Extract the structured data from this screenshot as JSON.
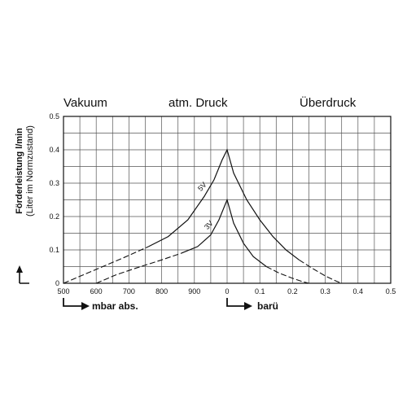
{
  "regions": {
    "vacuum": "Vakuum",
    "atm": "atm. Druck",
    "over": "Überdruck"
  },
  "ylabel": {
    "main": "Förderleistung l/min",
    "sub": "(Liter im Normzustand)"
  },
  "xlabel": {
    "left": "mbar abs.",
    "right": "barü"
  },
  "chart_data": {
    "type": "line",
    "ylim": [
      0,
      0.5
    ],
    "grid": true,
    "xticks": [
      "500",
      "600",
      "700",
      "800",
      "900",
      "0",
      "0.1",
      "0.2",
      "0.3",
      "0.4",
      "0.5"
    ],
    "yticks": [
      "0",
      "0.1",
      "0.2",
      "0.3",
      "0.4",
      "0.5"
    ],
    "series": [
      {
        "name": "5V",
        "vacuum": {
          "mbar": [
            500,
            560,
            620,
            680,
            760,
            820,
            880,
            930,
            960,
            985,
            1000
          ],
          "y": [
            0,
            0.025,
            0.05,
            0.075,
            0.11,
            0.14,
            0.19,
            0.26,
            0.31,
            0.37,
            0.4
          ]
        },
        "pressure": {
          "bar": [
            0,
            0.02,
            0.06,
            0.1,
            0.14,
            0.18,
            0.22,
            0.26,
            0.3,
            0.33,
            0.35
          ],
          "y": [
            0.4,
            0.33,
            0.25,
            0.19,
            0.14,
            0.1,
            0.07,
            0.045,
            0.022,
            0.008,
            0
          ]
        }
      },
      {
        "name": "3V",
        "vacuum": {
          "mbar": [
            600,
            660,
            720,
            800,
            860,
            910,
            950,
            975,
            1000
          ],
          "y": [
            0,
            0.025,
            0.045,
            0.07,
            0.09,
            0.11,
            0.145,
            0.19,
            0.25
          ]
        },
        "pressure": {
          "bar": [
            0,
            0.02,
            0.05,
            0.08,
            0.12,
            0.16,
            0.2,
            0.23,
            0.25
          ],
          "y": [
            0.25,
            0.18,
            0.12,
            0.08,
            0.05,
            0.03,
            0.015,
            0.005,
            0
          ]
        }
      }
    ]
  }
}
